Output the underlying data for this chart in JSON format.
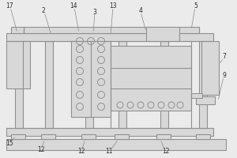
{
  "bg_color": "#ebebeb",
  "lc": "#909090",
  "fc": "#d8d8d8",
  "white": "#f5f5f5",
  "figsize": [
    3.0,
    2.0
  ],
  "dpi": 100
}
